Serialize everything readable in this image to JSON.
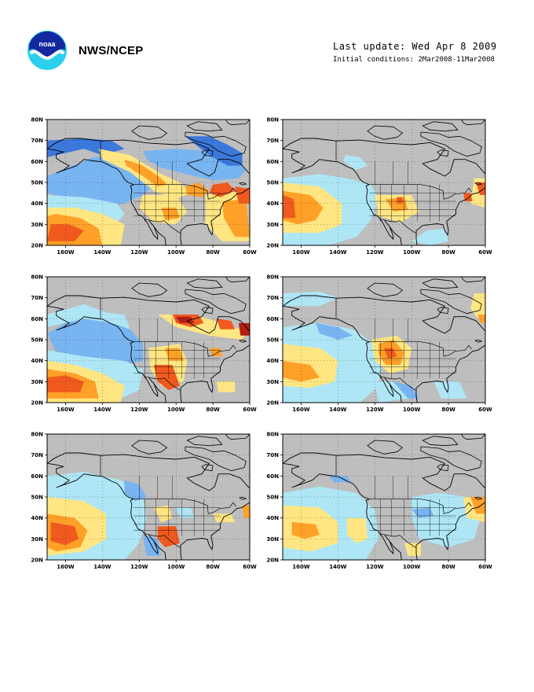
{
  "header": {
    "agency": "NWS/NCEP",
    "logo_text": "noaa",
    "last_update": "Last update: Wed Apr  8 2009",
    "initial_conditions": "Initial conditions: 2Mar2008-11Mar2008"
  },
  "axes": {
    "lon_ticks": [
      "160W",
      "140W",
      "120W",
      "100W",
      "80W",
      "60W"
    ],
    "lat_ticks": [
      "20N",
      "30N",
      "40N",
      "50N",
      "60N",
      "70N",
      "80N"
    ],
    "lon_range": [
      -170,
      -60
    ],
    "lat_range": [
      20,
      80
    ]
  },
  "colors": {
    "gray": "#bebebe",
    "light_blue": "#aee6f5",
    "mid_blue": "#78b4f0",
    "blue": "#3c78dc",
    "yellow": "#ffe682",
    "orange": "#ffa028",
    "red": "#f05a1e",
    "dark_red": "#b41e14"
  },
  "panels": [
    {
      "id": "p1"
    },
    {
      "id": "p2"
    },
    {
      "id": "p3"
    },
    {
      "id": "p4"
    },
    {
      "id": "p5"
    },
    {
      "id": "p6"
    }
  ]
}
